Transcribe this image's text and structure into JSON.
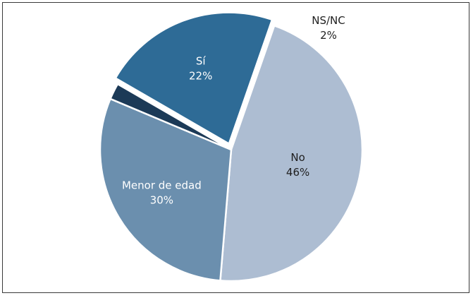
{
  "chart_data": {
    "type": "pie",
    "title": "",
    "slices": [
      {
        "label": "Sí",
        "value": 22,
        "value_label": "22%",
        "color": "#2e6b96",
        "text_color": "#ffffff",
        "exploded": true
      },
      {
        "label": "No",
        "value": 46,
        "value_label": "46%",
        "color": "#adbdd2",
        "text_color": "#1f1f1f",
        "exploded": false
      },
      {
        "label": "Menor de edad",
        "value": 30,
        "value_label": "30%",
        "color": "#6b8fae",
        "text_color": "#ffffff",
        "exploded": false
      },
      {
        "label": "NS/NC",
        "value": 2,
        "value_label": "2%",
        "color": "#1c3a57",
        "text_color": "#1f1f1f",
        "exploded": false
      }
    ],
    "legend": "none",
    "label_placement": "inside slices; NS/NC label outside"
  }
}
